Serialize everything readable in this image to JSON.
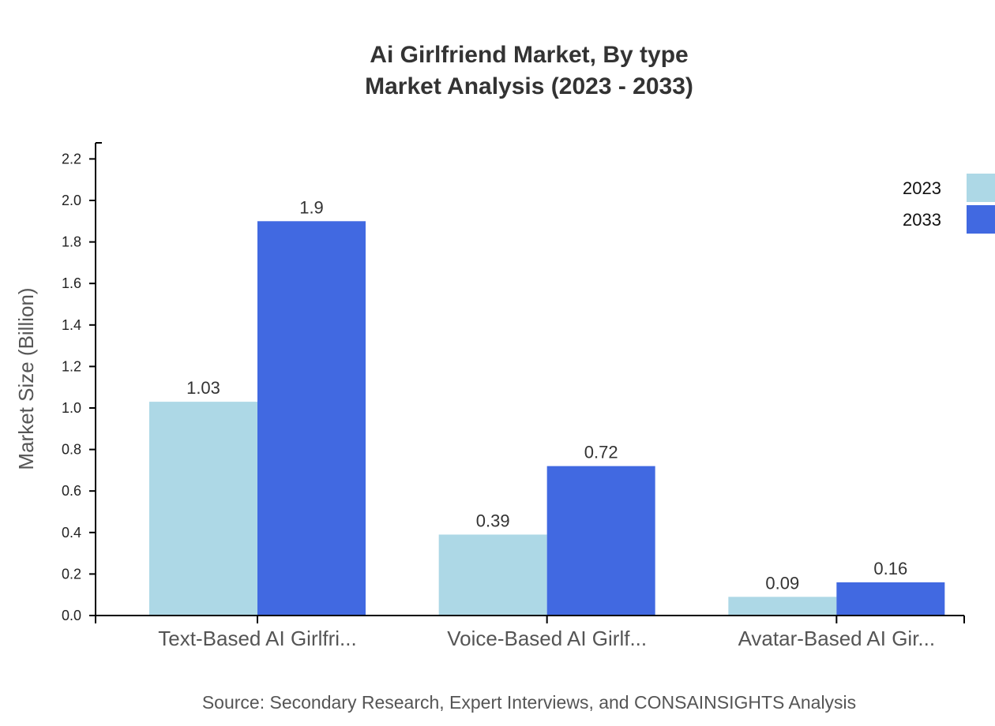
{
  "title": {
    "line1": "Ai Girlfriend Market, By type",
    "line2": "Market Analysis (2023 - 2033)"
  },
  "source": "Source: Secondary Research, Expert Interviews, and CONSAINSIGHTS Analysis",
  "legend": [
    {
      "label": "2023",
      "color": "#add8e6"
    },
    {
      "label": "2033",
      "color": "#4169e1"
    }
  ],
  "chart_data": {
    "type": "bar",
    "title": "Ai Girlfriend Market, By type — Market Analysis (2023 - 2033)",
    "xlabel": "",
    "ylabel": "Market Size (Billion)",
    "ylim": [
      0,
      2.28
    ],
    "yticks": [
      "0.0",
      "0.2",
      "0.4",
      "0.6",
      "0.8",
      "1.0",
      "1.2",
      "1.4",
      "1.6",
      "1.8",
      "2.0",
      "2.2"
    ],
    "categories": [
      "Text-Based AI Girlfri...",
      "Voice-Based AI Girlf...",
      "Avatar-Based AI Gir..."
    ],
    "series": [
      {
        "name": "2023",
        "color": "#add8e6",
        "values": [
          1.03,
          0.39,
          0.09
        ]
      },
      {
        "name": "2033",
        "color": "#4169e1",
        "values": [
          1.9,
          0.72,
          0.16
        ]
      }
    ],
    "legend_position": "top-right",
    "grid": false,
    "source": "Source: Secondary Research, Expert Interviews, and CONSAINSIGHTS Analysis"
  }
}
